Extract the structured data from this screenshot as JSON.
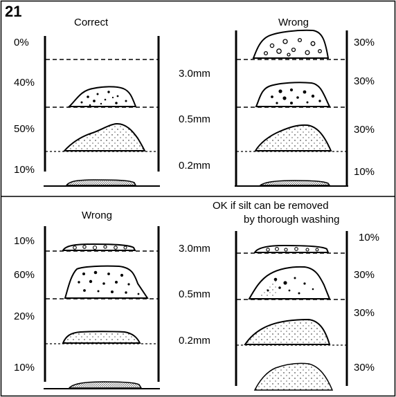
{
  "figure_number": "21",
  "panels": [
    {
      "title": [
        "Correct"
      ],
      "left_pcts": [
        "0%",
        "40%",
        "50%",
        "10%"
      ]
    },
    {
      "title": [
        "Wrong"
      ],
      "right_pcts": [
        "30%",
        "30%",
        "30%",
        "10%"
      ]
    },
    {
      "title": [
        "Wrong"
      ],
      "left_pcts": [
        "10%",
        "60%",
        "20%",
        "10%"
      ]
    },
    {
      "title": [
        "OK if silt can be removed",
        "by thorough washing"
      ],
      "right_pcts": [
        "10%",
        "30%",
        "30%",
        "30%"
      ]
    }
  ],
  "sieve_sizes_top": [
    "3.0mm",
    "0.5mm",
    "0.2mm"
  ],
  "sieve_sizes_bottom": [
    "3.0mm",
    "0.5mm",
    "0.2mm"
  ]
}
